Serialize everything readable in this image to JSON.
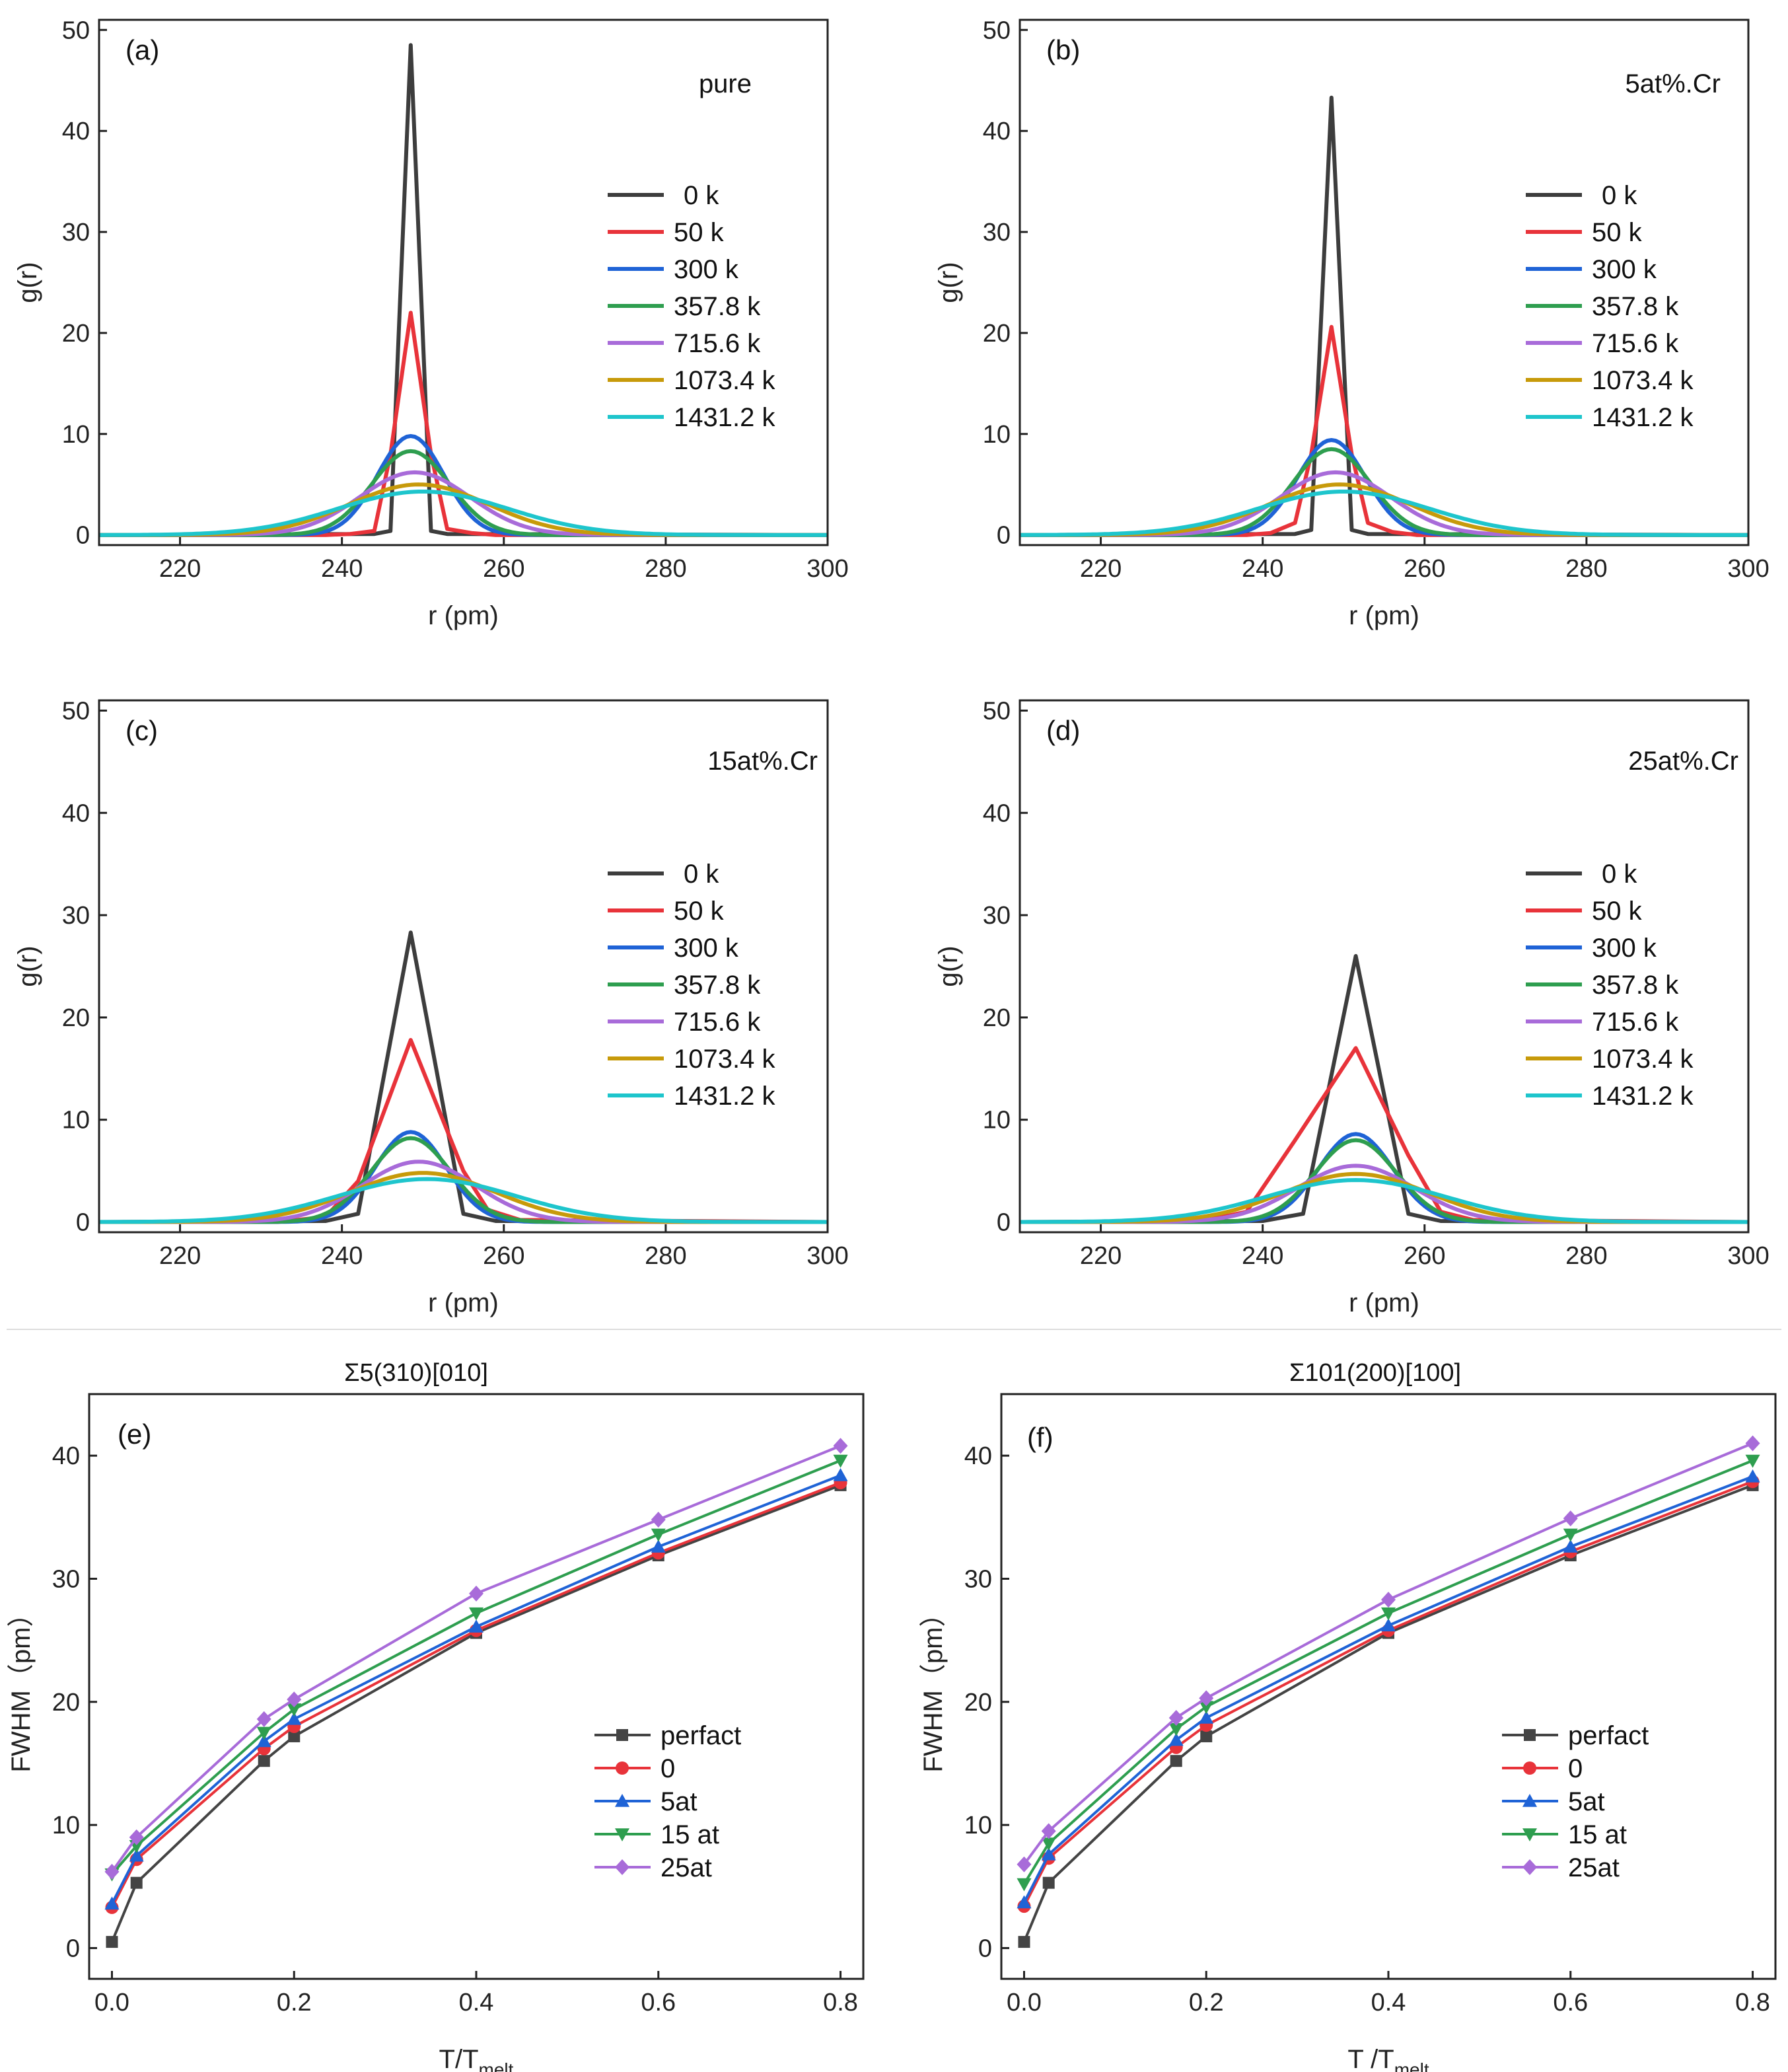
{
  "colors": {
    "0 k": "#3d3d3d",
    "50 k": "#e8333a",
    "300 k": "#1f63d6",
    "357.8 k": "#2e9e4f",
    "715.6 k": "#a86bd9",
    "1073.4 k": "#c79a0a",
    "1431.2 k": "#1ec5cc",
    "perfact": "#444444",
    "0": "#e8333a",
    "5at": "#1f63d6",
    "15 at": "#2e9e4f",
    "25at": "#a86bd9"
  },
  "chart_data": [
    {
      "type": "line",
      "panel": "(a)",
      "annotation": "pure",
      "xlabel": "r (pm)",
      "ylabel": "g(r)",
      "xlim": [
        210,
        300
      ],
      "ylim": [
        -1,
        51
      ],
      "xticks": [
        220,
        240,
        260,
        280,
        300
      ],
      "yticks": [
        0,
        10,
        20,
        30,
        40,
        50
      ],
      "series": [
        {
          "name": "0 k",
          "x": [
            210,
            244,
            246,
            248.5,
            251,
            253,
            300
          ],
          "y": [
            0,
            0.1,
            0.4,
            48.5,
            0.4,
            0.1,
            0
          ]
        },
        {
          "name": "50 k",
          "x": [
            210,
            238,
            241,
            244,
            246,
            248.5,
            251,
            253,
            256,
            259,
            300
          ],
          "y": [
            0,
            0,
            0.1,
            0.4,
            8,
            22,
            8,
            0.6,
            0.2,
            0,
            0
          ]
        },
        {
          "name": "300 k",
          "mu": 248.5,
          "sigma": 4.1,
          "peak": 9.8
        },
        {
          "name": "357.8 k",
          "mu": 248.5,
          "sigma": 4.8,
          "peak": 8.3
        },
        {
          "name": "715.6 k",
          "mu": 249,
          "sigma": 6.8,
          "peak": 6.2
        },
        {
          "name": "1073.4 k",
          "mu": 249.5,
          "sigma": 8.6,
          "peak": 5.0
        },
        {
          "name": "1431.2 k",
          "mu": 250,
          "sigma": 10.5,
          "peak": 4.3
        }
      ]
    },
    {
      "type": "line",
      "panel": "(b)",
      "annotation": "5at%.Cr",
      "xlabel": "r (pm)",
      "ylabel": "g(r)",
      "xlim": [
        210,
        300
      ],
      "ylim": [
        -1,
        51
      ],
      "xticks": [
        220,
        240,
        260,
        280,
        300
      ],
      "yticks": [
        0,
        10,
        20,
        30,
        40,
        50
      ],
      "series": [
        {
          "name": "0 k",
          "x": [
            210,
            244,
            246,
            248.5,
            251,
            253,
            300
          ],
          "y": [
            0,
            0.1,
            0.5,
            43.3,
            0.5,
            0.1,
            0
          ]
        },
        {
          "name": "50 k",
          "x": [
            210,
            238,
            241,
            244,
            246,
            248.5,
            251,
            253,
            256,
            259,
            300
          ],
          "y": [
            0,
            0,
            0.2,
            1.2,
            8,
            20.6,
            8,
            1.2,
            0.3,
            0,
            0
          ]
        },
        {
          "name": "300 k",
          "mu": 248.5,
          "sigma": 4.2,
          "peak": 9.4
        },
        {
          "name": "357.8 k",
          "mu": 248.5,
          "sigma": 4.8,
          "peak": 8.5
        },
        {
          "name": "715.6 k",
          "mu": 249,
          "sigma": 6.8,
          "peak": 6.2
        },
        {
          "name": "1073.4 k",
          "mu": 249.5,
          "sigma": 8.7,
          "peak": 5.0
        },
        {
          "name": "1431.2 k",
          "mu": 250,
          "sigma": 10.6,
          "peak": 4.3
        }
      ]
    },
    {
      "type": "line",
      "panel": "(c)",
      "annotation": "15at%.Cr",
      "xlabel": "r (pm)",
      "ylabel": "g(r)",
      "xlim": [
        210,
        300
      ],
      "ylim": [
        -1,
        51
      ],
      "xticks": [
        220,
        240,
        260,
        280,
        300
      ],
      "yticks": [
        0,
        10,
        20,
        30,
        40,
        50
      ],
      "series": [
        {
          "name": "0 k",
          "x": [
            210,
            238,
            242,
            248.5,
            255,
            259,
            300
          ],
          "y": [
            0,
            0.1,
            0.8,
            28.3,
            0.8,
            0.1,
            0
          ]
        },
        {
          "name": "50 k",
          "x": [
            210,
            232,
            238,
            242,
            248.5,
            255,
            258,
            262,
            300
          ],
          "y": [
            0,
            0,
            0.5,
            4,
            17.8,
            5,
            1.2,
            0.2,
            0
          ]
        },
        {
          "name": "300 k",
          "mu": 248.5,
          "sigma": 4.4,
          "peak": 8.8
        },
        {
          "name": "357.8 k",
          "mu": 248.5,
          "sigma": 4.9,
          "peak": 8.2
        },
        {
          "name": "715.6 k",
          "mu": 249.5,
          "sigma": 7.0,
          "peak": 5.9
        },
        {
          "name": "1073.4 k",
          "mu": 250,
          "sigma": 9.0,
          "peak": 4.8
        },
        {
          "name": "1431.2 k",
          "mu": 250.5,
          "sigma": 11.0,
          "peak": 4.2
        }
      ]
    },
    {
      "type": "line",
      "panel": "(d)",
      "annotation": "25at%.Cr",
      "xlabel": "r (pm)",
      "ylabel": "g(r)",
      "xlim": [
        210,
        300
      ],
      "ylim": [
        -1,
        51
      ],
      "xticks": [
        220,
        240,
        260,
        280,
        300
      ],
      "yticks": [
        0,
        10,
        20,
        30,
        40,
        50
      ],
      "series": [
        {
          "name": "0 k",
          "x": [
            210,
            240,
            245,
            251.5,
            258,
            262,
            300
          ],
          "y": [
            0,
            0.1,
            0.8,
            26,
            0.8,
            0.1,
            0
          ]
        },
        {
          "name": "50 k",
          "x": [
            210,
            232,
            238,
            244,
            251.5,
            258,
            262,
            266,
            300
          ],
          "y": [
            0,
            0,
            1,
            8,
            17,
            6.5,
            1,
            0.2,
            0
          ]
        },
        {
          "name": "300 k",
          "mu": 251.5,
          "sigma": 4.6,
          "peak": 8.6
        },
        {
          "name": "357.8 k",
          "mu": 251.5,
          "sigma": 5.0,
          "peak": 8.0
        },
        {
          "name": "715.6 k",
          "mu": 251.5,
          "sigma": 7.2,
          "peak": 5.5
        },
        {
          "name": "1073.4 k",
          "mu": 251.5,
          "sigma": 9.0,
          "peak": 4.7
        },
        {
          "name": "1431.2 k",
          "mu": 251.5,
          "sigma": 11.0,
          "peak": 4.1
        }
      ]
    },
    {
      "type": "line",
      "panel": "(e)",
      "title": "Σ5(310)[010]",
      "xlabel": "T/T",
      "xlabel_sub": "melt",
      "ylabel": "FWHM（pm）",
      "xlim": [
        -0.025,
        0.825
      ],
      "ylim": [
        -2.5,
        45
      ],
      "xticks": [
        0.0,
        0.2,
        0.4,
        0.6,
        0.8
      ],
      "yticks": [
        0,
        10,
        20,
        30,
        40
      ],
      "x": [
        0.0,
        0.027,
        0.167,
        0.2,
        0.4,
        0.6,
        0.8
      ],
      "series": [
        {
          "name": "perfact",
          "marker": "square",
          "values": [
            0.5,
            5.3,
            15.2,
            17.2,
            25.6,
            31.9,
            37.6
          ]
        },
        {
          "name": "0",
          "marker": "circle",
          "values": [
            3.3,
            7.2,
            16.2,
            18.0,
            25.8,
            32.1,
            37.8
          ]
        },
        {
          "name": "5at",
          "marker": "triangle-up",
          "values": [
            3.6,
            7.5,
            16.8,
            18.6,
            26.1,
            32.6,
            38.4
          ]
        },
        {
          "name": "15 at",
          "marker": "triangle-down",
          "values": [
            6.0,
            8.3,
            17.5,
            19.4,
            27.2,
            33.6,
            39.6
          ]
        },
        {
          "name": "25at",
          "marker": "diamond",
          "values": [
            6.2,
            9.0,
            18.6,
            20.2,
            28.8,
            34.8,
            40.8
          ]
        }
      ]
    },
    {
      "type": "line",
      "panel": "(f)",
      "title": "Σ101(200)[100]",
      "xlabel": "T /T",
      "xlabel_sub": "melt",
      "ylabel": "FWHM（pm）",
      "xlim": [
        -0.025,
        0.825
      ],
      "ylim": [
        -2.5,
        45
      ],
      "xticks": [
        0.0,
        0.2,
        0.4,
        0.6,
        0.8
      ],
      "yticks": [
        0,
        10,
        20,
        30,
        40
      ],
      "x": [
        0.0,
        0.027,
        0.167,
        0.2,
        0.4,
        0.6,
        0.8
      ],
      "series": [
        {
          "name": "perfact",
          "marker": "square",
          "values": [
            0.5,
            5.3,
            15.2,
            17.2,
            25.6,
            31.9,
            37.6
          ]
        },
        {
          "name": "0",
          "marker": "circle",
          "values": [
            3.4,
            7.3,
            16.3,
            18.1,
            25.8,
            32.2,
            37.9
          ]
        },
        {
          "name": "5at",
          "marker": "triangle-up",
          "values": [
            3.7,
            7.6,
            16.9,
            18.7,
            26.2,
            32.6,
            38.3
          ]
        },
        {
          "name": "15 at",
          "marker": "triangle-down",
          "values": [
            5.2,
            8.5,
            17.8,
            19.6,
            27.2,
            33.6,
            39.6
          ]
        },
        {
          "name": "25at",
          "marker": "diamond",
          "values": [
            6.8,
            9.5,
            18.7,
            20.3,
            28.3,
            34.9,
            41.0
          ]
        }
      ]
    }
  ]
}
